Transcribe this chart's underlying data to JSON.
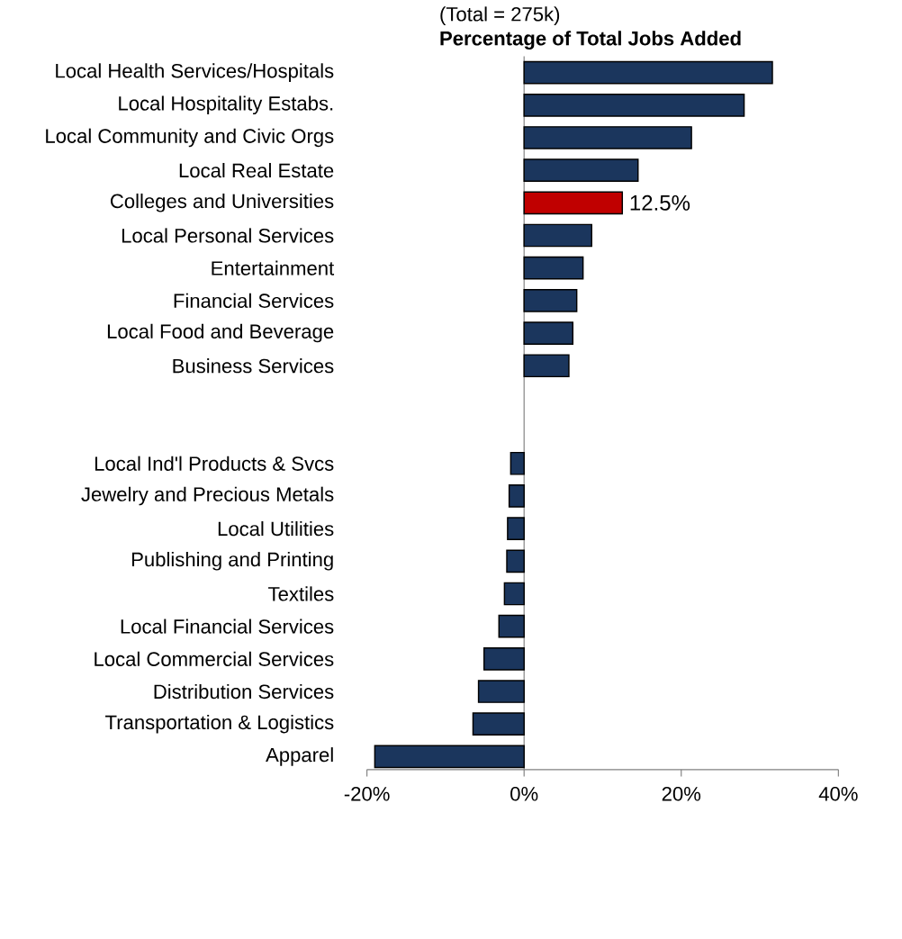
{
  "chart_data": {
    "type": "bar",
    "orientation": "horizontal",
    "subtitle": "(Total = 275k)",
    "title": "Percentage of Total Jobs Added",
    "categories": [
      "Local Health Services/Hospitals",
      "Local Hospitality Estabs.",
      "Local Community and Civic Orgs",
      "Local Real Estate",
      "Colleges and Universities",
      "Local Personal Services",
      "Entertainment",
      "Financial Services",
      "Local Food and Beverage",
      "Business Services",
      null,
      null,
      "Local Ind'l Products & Svcs",
      "Jewelry and Precious Metals",
      "Local Utilities",
      "Publishing and Printing",
      "Textiles",
      "Local Financial Services",
      "Local Commercial Services",
      "Distribution Services",
      "Transportation & Logistics",
      "Apparel"
    ],
    "values": [
      31.6,
      28.0,
      21.3,
      14.5,
      12.5,
      8.6,
      7.5,
      6.7,
      6.2,
      5.7,
      null,
      null,
      -1.7,
      -1.9,
      -2.1,
      -2.2,
      -2.5,
      -3.2,
      -5.1,
      -5.8,
      -6.5,
      -19.0
    ],
    "colors": [
      "#1b365d",
      "#1b365d",
      "#1b365d",
      "#1b365d",
      "#c00000",
      "#1b365d",
      "#1b365d",
      "#1b365d",
      "#1b365d",
      "#1b365d",
      null,
      null,
      "#1b365d",
      "#1b365d",
      "#1b365d",
      "#1b365d",
      "#1b365d",
      "#1b365d",
      "#1b365d",
      "#1b365d",
      "#1b365d",
      "#1b365d"
    ],
    "value_labels": [
      null,
      null,
      null,
      null,
      "12.5%",
      null,
      null,
      null,
      null,
      null,
      null,
      null,
      null,
      null,
      null,
      null,
      null,
      null,
      null,
      null,
      null,
      null
    ],
    "xlim": [
      -20,
      40
    ],
    "xticks": [
      {
        "value": -20,
        "label": "-20%"
      },
      {
        "value": 0,
        "label": "0%"
      },
      {
        "value": 20,
        "label": "20%"
      },
      {
        "value": 40,
        "label": "40%"
      }
    ]
  }
}
